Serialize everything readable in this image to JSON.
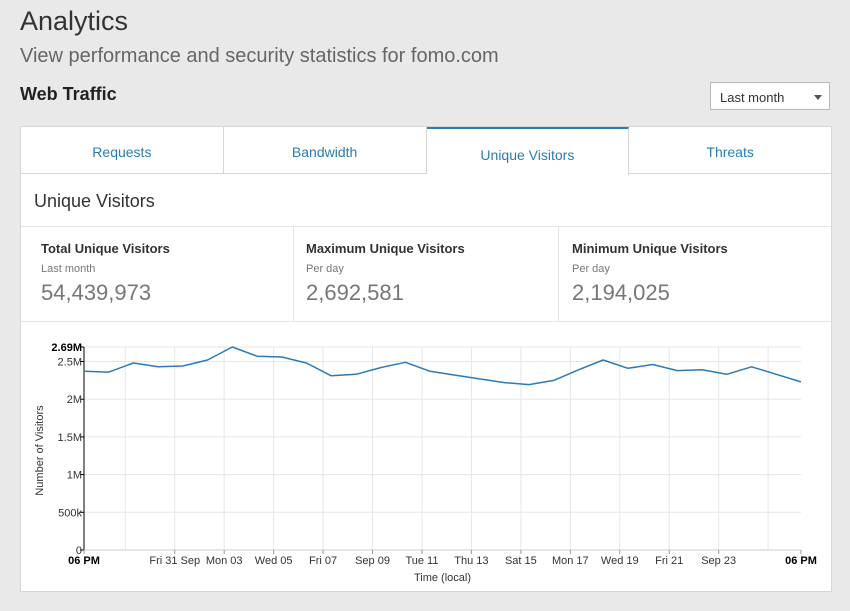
{
  "header": {
    "title": "Analytics",
    "subtitle": "View performance and security statistics for fomo.com"
  },
  "section": {
    "title": "Web Traffic",
    "range_select": {
      "value": "Last month"
    }
  },
  "tabs": [
    {
      "label": "Requests",
      "active": false
    },
    {
      "label": "Bandwidth",
      "active": false
    },
    {
      "label": "Unique Visitors",
      "active": true
    },
    {
      "label": "Threats",
      "active": false
    }
  ],
  "panel": {
    "title": "Unique Visitors",
    "stats": [
      {
        "label": "Total Unique Visitors",
        "sublabel": "Last month",
        "value": "54,439,973"
      },
      {
        "label": "Maximum Unique Visitors",
        "sublabel": "Per day",
        "value": "2,692,581"
      },
      {
        "label": "Minimum Unique Visitors",
        "sublabel": "Per day",
        "value": "2,194,025"
      }
    ]
  },
  "colors": {
    "accent": "#2c7cb0",
    "line": "#2b7bb9",
    "grid": "#e6e6e6"
  },
  "chart_data": {
    "type": "line",
    "xlabel": "Time (local)",
    "ylabel": "Number of Visitors",
    "ylim": [
      0,
      2692581
    ],
    "y_ticks": [
      {
        "value": 0,
        "label": "0"
      },
      {
        "value": 500000,
        "label": "500k"
      },
      {
        "value": 1000000,
        "label": "1M"
      },
      {
        "value": 1500000,
        "label": "1.5M"
      },
      {
        "value": 2000000,
        "label": "2M"
      },
      {
        "value": 2500000,
        "label": "2.5M"
      },
      {
        "value": 2692581,
        "label": "2.69M",
        "bold": true
      }
    ],
    "x_domain": [
      0,
      29
    ],
    "x_ticks": [
      {
        "x": 0,
        "label": "06 PM",
        "bold": true
      },
      {
        "x": 3.67,
        "label": "Fri 31 Sep"
      },
      {
        "x": 5.67,
        "label": "Mon 03"
      },
      {
        "x": 7.67,
        "label": "Wed 05"
      },
      {
        "x": 9.67,
        "label": "Fri 07"
      },
      {
        "x": 11.67,
        "label": "Sep 09"
      },
      {
        "x": 13.67,
        "label": "Tue 11"
      },
      {
        "x": 15.67,
        "label": "Thu 13"
      },
      {
        "x": 17.67,
        "label": "Sat 15"
      },
      {
        "x": 19.67,
        "label": "Mon 17"
      },
      {
        "x": 21.67,
        "label": "Wed 19"
      },
      {
        "x": 23.67,
        "label": "Fri 21"
      },
      {
        "x": 25.67,
        "label": "Sep 23"
      },
      {
        "x": 29,
        "label": "06 PM",
        "bold": true
      }
    ],
    "x_grid": [
      1.67,
      3.67,
      5.67,
      7.67,
      9.67,
      11.67,
      13.67,
      15.67,
      17.67,
      19.67,
      21.67,
      23.67,
      25.67,
      27.67
    ],
    "series": [
      {
        "name": "Unique Visitors",
        "x": [
          0,
          1,
          2,
          3,
          4,
          5,
          6,
          7,
          8,
          9,
          10,
          11,
          12,
          13,
          14,
          15,
          16,
          17,
          18,
          19,
          20,
          21,
          22,
          23,
          24,
          25,
          26,
          27,
          28,
          29
        ],
        "values": [
          2370000,
          2360000,
          2480000,
          2430000,
          2440000,
          2520000,
          2692581,
          2570000,
          2560000,
          2480000,
          2310000,
          2330000,
          2420000,
          2490000,
          2370000,
          2320000,
          2270000,
          2220000,
          2194025,
          2250000,
          2390000,
          2520000,
          2410000,
          2460000,
          2380000,
          2390000,
          2330000,
          2430000,
          2330000,
          2230000
        ]
      }
    ]
  }
}
